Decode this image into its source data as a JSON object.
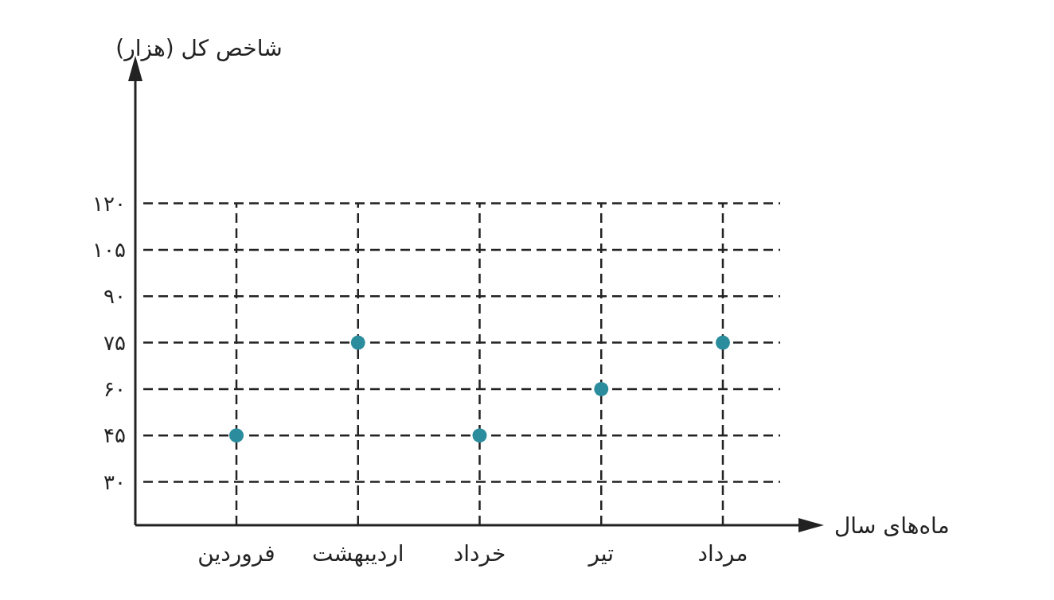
{
  "chart_data": {
    "type": "scatter",
    "xlabel": "ماه‌های سال",
    "ylabel": "شاخص کل (هزار)",
    "categories": [
      "فروردین",
      "اردیبهشت",
      "خرداد",
      "تیر",
      "مرداد"
    ],
    "series": [
      {
        "color": "#2a8c9c",
        "values": [
          45,
          75,
          45,
          60,
          75
        ]
      }
    ],
    "ylim": [
      16,
      160
    ],
    "yticks": [
      {
        "value": 30,
        "label": "۳۰"
      },
      {
        "value": 45,
        "label": "۴۵"
      },
      {
        "value": 60,
        "label": "۶۰"
      },
      {
        "value": 75,
        "label": "۷۵"
      },
      {
        "value": 90,
        "label": "۹۰"
      },
      {
        "value": 105,
        "label": "۱۰۵"
      },
      {
        "value": 120,
        "label": "۱۲۰"
      }
    ],
    "grid": true,
    "marker": "circle"
  }
}
